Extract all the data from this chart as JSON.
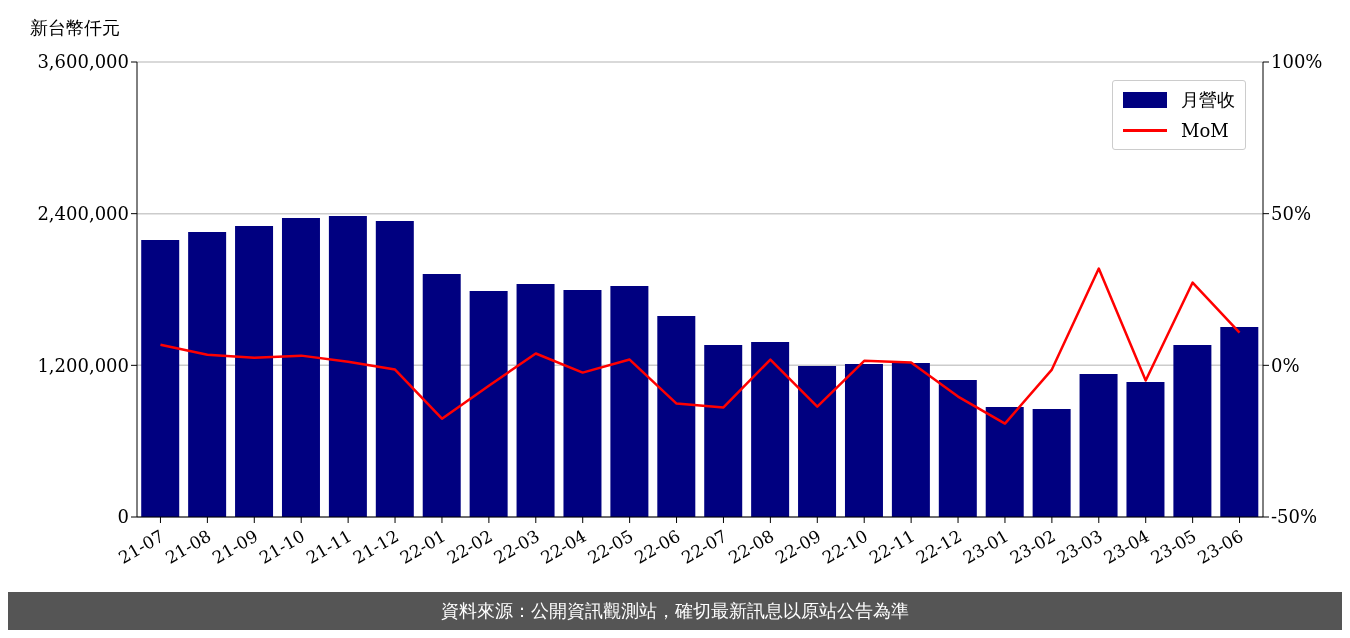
{
  "chart_data": {
    "type": "bar",
    "ylabel": "新台幣仟元",
    "categories": [
      "21-07",
      "21-08",
      "21-09",
      "21-10",
      "21-11",
      "21-12",
      "22-01",
      "22-02",
      "22-03",
      "22-04",
      "22-05",
      "22-06",
      "22-07",
      "22-08",
      "22-09",
      "22-10",
      "22-11",
      "22-12",
      "23-01",
      "23-02",
      "23-03",
      "23-04",
      "23-05",
      "23-06"
    ],
    "series": [
      {
        "name": "月營收",
        "color": "#000080",
        "values": [
          2192000,
          2255000,
          2302000,
          2366000,
          2382000,
          2342000,
          1923000,
          1788000,
          1844000,
          1796000,
          1828000,
          1590000,
          1361000,
          1385000,
          1195000,
          1211000,
          1218000,
          1084000,
          870000,
          855000,
          1131000,
          1068000,
          1361000,
          1503000
        ]
      },
      {
        "name": "MoM",
        "type": "line",
        "axis": "y2",
        "color": "#ff0000",
        "marker": "none",
        "values": [
          6.8,
          3.5,
          2.5,
          3.2,
          1.2,
          -1.4,
          -17.6,
          -6.7,
          3.9,
          -2.4,
          1.9,
          -12.6,
          -13.9,
          1.9,
          -13.6,
          1.5,
          0.9,
          -10.3,
          -19.2,
          -1.4,
          31.9,
          -5.0,
          27.3,
          10.8
        ]
      }
    ],
    "ylim": [
      0,
      3600000
    ],
    "yticks": [
      {
        "value": 0,
        "label": "0"
      },
      {
        "value": 1200000,
        "label": "1,200,000"
      },
      {
        "value": 2400000,
        "label": "2,400,000"
      },
      {
        "value": 3600000,
        "label": "3,600,000"
      }
    ],
    "y2lim": [
      -50,
      100
    ],
    "y2ticks": [
      {
        "value": -50,
        "label": "-50%"
      },
      {
        "value": 0,
        "label": "0%"
      },
      {
        "value": 50,
        "label": "50%"
      },
      {
        "value": 100,
        "label": "100%"
      }
    ],
    "grid": "y",
    "legend": "top right",
    "annotations": [
      "資料來源：公開資訊觀測站，確切最新訊息以原站公告為準"
    ]
  }
}
